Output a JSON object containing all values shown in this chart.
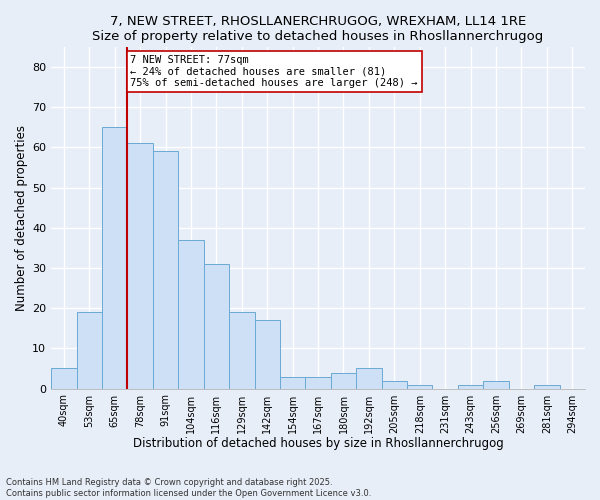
{
  "title1": "7, NEW STREET, RHOSLLANERCHRUGOG, WREXHAM, LL14 1RE",
  "title2": "Size of property relative to detached houses in Rhosllannerchrugog",
  "xlabel": "Distribution of detached houses by size in Rhosllannerchrugog",
  "ylabel": "Number of detached properties",
  "categories": [
    "40sqm",
    "53sqm",
    "65sqm",
    "78sqm",
    "91sqm",
    "104sqm",
    "116sqm",
    "129sqm",
    "142sqm",
    "154sqm",
    "167sqm",
    "180sqm",
    "192sqm",
    "205sqm",
    "218sqm",
    "231sqm",
    "243sqm",
    "256sqm",
    "269sqm",
    "281sqm",
    "294sqm"
  ],
  "values": [
    5,
    19,
    65,
    61,
    59,
    37,
    31,
    19,
    17,
    3,
    3,
    4,
    5,
    2,
    1,
    0,
    1,
    2,
    0,
    1,
    0
  ],
  "bar_color": "#cde0f5",
  "bar_edge_color": "#6aaad4",
  "vline_color": "#c00000",
  "vline_x": 2.5,
  "annotation_text": "7 NEW STREET: 77sqm\n← 24% of detached houses are smaller (81)\n75% of semi-detached houses are larger (248) →",
  "ylim": [
    0,
    85
  ],
  "yticks": [
    0,
    10,
    20,
    30,
    40,
    50,
    60,
    70,
    80
  ],
  "footnote": "Contains HM Land Registry data © Crown copyright and database right 2025.\nContains public sector information licensed under the Open Government Licence v3.0.",
  "background_color": "#e8eef8",
  "grid_color": "#ffffff"
}
